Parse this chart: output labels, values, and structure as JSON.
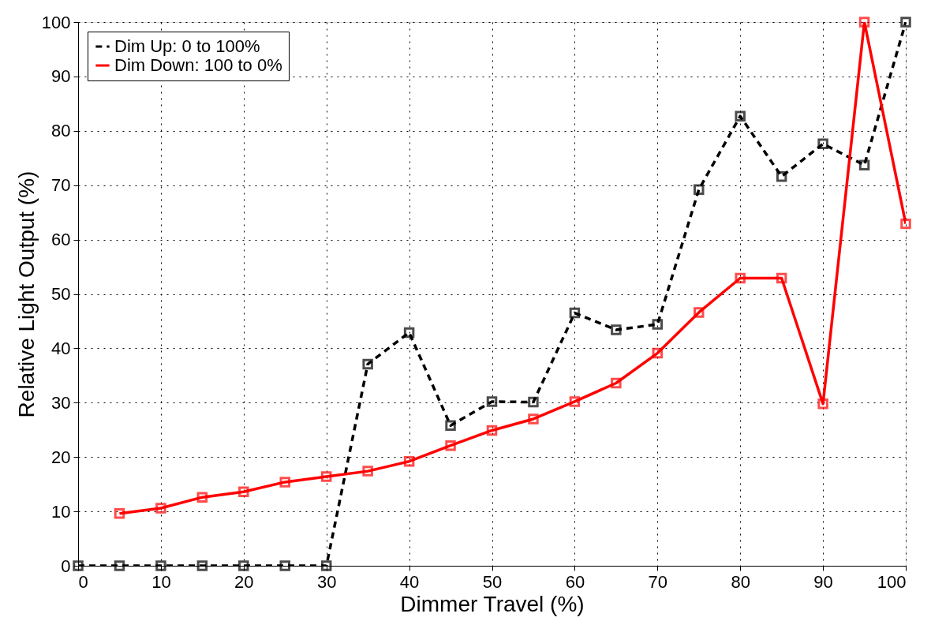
{
  "chart_data": {
    "type": "line",
    "xlabel": "Dimmer Travel (%)",
    "ylabel": "Relative Light Output (%)",
    "xlim": [
      0,
      100
    ],
    "xticks": [
      0,
      10,
      20,
      30,
      40,
      50,
      60,
      70,
      80,
      90,
      100
    ],
    "ylim": [
      0,
      100
    ],
    "yticks": [
      0,
      10,
      20,
      30,
      40,
      50,
      60,
      70,
      80,
      90,
      100
    ],
    "grid": true,
    "legend": "top left",
    "marker": "square",
    "series": [
      {
        "name": "Dim Up: 0 to 100%",
        "color": "#000000",
        "line_style": "dashed",
        "x": [
          0,
          5,
          10,
          15,
          20,
          25,
          30,
          35,
          40,
          45,
          50,
          55,
          60,
          65,
          70,
          75,
          80,
          85,
          90,
          95,
          100
        ],
        "values": [
          0,
          0,
          0,
          0,
          0,
          0,
          0,
          37.1,
          42.9,
          25.8,
          30.2,
          30.1,
          46.5,
          43.4,
          44.4,
          69.2,
          82.7,
          71.6,
          77.6,
          73.7,
          100
        ]
      },
      {
        "name": "Dim Down: 100 to 0%",
        "color": "#ff0000",
        "line_style": "solid",
        "x": [
          5,
          10,
          15,
          20,
          25,
          30,
          35,
          40,
          45,
          50,
          55,
          60,
          65,
          70,
          75,
          80,
          85,
          90,
          95,
          100
        ],
        "values": [
          9.6,
          10.6,
          12.6,
          13.6,
          15.4,
          16.4,
          17.4,
          19.2,
          22.1,
          24.9,
          27.0,
          30.2,
          33.6,
          39.1,
          46.6,
          52.9,
          52.9,
          29.8,
          100,
          62.9
        ]
      }
    ]
  }
}
